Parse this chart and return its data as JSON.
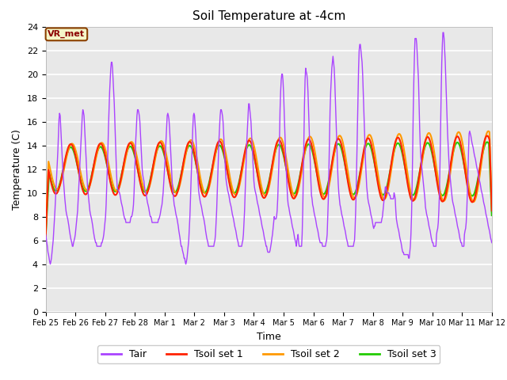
{
  "title": "Soil Temperature at -4cm",
  "xlabel": "Time",
  "ylabel": "Temperature (C)",
  "ylim": [
    0,
    24
  ],
  "bg_color": "#e8e8e8",
  "annotation": "VR_met",
  "annotation_color": "#8b0000",
  "annotation_bg": "#f5f5c8",
  "annotation_border": "#8b4000",
  "xtick_labels": [
    "Feb 25",
    "Feb 26",
    "Feb 27",
    "Feb 28",
    "Mar 1",
    "Mar 2",
    "Mar 3",
    "Mar 4",
    "Mar 5",
    "Mar 6",
    "Mar 7",
    "Mar 8",
    "Mar 9",
    "Mar 10",
    "Mar 11",
    "Mar 12"
  ],
  "line_colors": {
    "Tair": "#aa44ff",
    "Tsoil1": "#ff2200",
    "Tsoil2": "#ff9900",
    "Tsoil3": "#22cc00"
  },
  "line_widths": {
    "Tair": 1.0,
    "Tsoil1": 1.5,
    "Tsoil2": 1.5,
    "Tsoil3": 1.5
  },
  "legend_labels": [
    "Tair",
    "Tsoil set 1",
    "Tsoil set 2",
    "Tsoil set 3"
  ],
  "n_days": 16,
  "pts_per_day": 48,
  "Tair_raw": [
    6.5,
    6.2,
    5.8,
    5.5,
    5.0,
    4.8,
    4.5,
    4.2,
    4.0,
    4.2,
    4.5,
    5.0,
    5.5,
    6.0,
    6.8,
    7.5,
    8.5,
    9.5,
    10.5,
    11.5,
    12.5,
    13.5,
    14.8,
    16.2,
    16.7,
    16.5,
    15.5,
    14.5,
    13.5,
    12.5,
    11.5,
    10.8,
    10.0,
    9.5,
    9.0,
    8.5,
    8.2,
    8.0,
    7.8,
    7.5,
    7.2,
    6.8,
    6.5,
    6.2,
    6.0,
    5.8,
    5.5,
    5.5,
    5.8,
    6.0,
    6.2,
    6.5,
    7.0,
    7.5,
    8.0,
    8.5,
    9.5,
    10.5,
    11.5,
    12.5,
    13.5,
    14.5,
    15.5,
    16.5,
    17.0,
    16.8,
    16.5,
    15.5,
    14.5,
    13.5,
    12.5,
    11.5,
    10.5,
    10.0,
    9.5,
    9.0,
    8.5,
    8.2,
    8.0,
    7.8,
    7.5,
    7.2,
    6.8,
    6.5,
    6.2,
    6.0,
    5.8,
    5.8,
    5.5,
    5.5,
    5.5,
    5.5,
    5.5,
    5.5,
    5.5,
    5.5,
    5.8,
    5.8,
    6.0,
    6.2,
    6.5,
    7.0,
    7.5,
    8.0,
    9.0,
    10.5,
    12.0,
    13.5,
    15.5,
    17.0,
    18.5,
    19.5,
    20.5,
    21.0,
    21.0,
    20.5,
    19.5,
    18.5,
    17.5,
    16.0,
    14.5,
    13.0,
    11.5,
    10.5,
    10.3,
    10.2,
    10.1,
    10.0,
    9.8,
    9.5,
    9.2,
    9.0,
    8.8,
    8.5,
    8.2,
    8.0,
    7.8,
    7.8,
    7.5,
    7.5,
    7.5,
    7.5,
    7.5,
    7.5,
    7.5,
    7.5,
    7.8,
    8.0,
    8.0,
    8.2,
    8.5,
    9.0,
    10.0,
    11.5,
    13.0,
    14.5,
    15.5,
    16.5,
    17.0,
    17.0,
    16.8,
    16.5,
    16.0,
    15.0,
    14.0,
    13.0,
    12.0,
    11.5,
    11.2,
    11.0,
    10.5,
    10.2,
    10.0,
    9.8,
    9.5,
    9.2,
    9.0,
    8.8,
    8.5,
    8.2,
    8.0,
    8.0,
    7.8,
    7.5,
    7.5,
    7.5,
    7.5,
    7.5,
    7.5,
    7.5,
    7.5,
    7.5,
    7.5,
    7.5,
    7.8,
    7.8,
    8.0,
    8.2,
    8.5,
    8.8,
    9.0,
    9.5,
    10.0,
    10.8,
    11.5,
    12.5,
    13.5,
    14.5,
    15.5,
    16.5,
    16.7,
    16.5,
    16.2,
    15.5,
    14.5,
    13.5,
    12.5,
    11.5,
    10.5,
    10.0,
    9.5,
    9.0,
    8.8,
    8.5,
    8.2,
    8.0,
    7.8,
    7.5,
    7.2,
    6.8,
    6.5,
    6.2,
    5.8,
    5.5,
    5.5,
    5.2,
    5.0,
    4.8,
    4.5,
    4.5,
    4.2,
    4.0,
    4.2,
    4.5,
    5.0,
    5.5,
    6.0,
    7.0,
    8.0,
    9.5,
    11.0,
    12.5,
    14.0,
    15.5,
    16.5,
    16.7,
    16.5,
    15.8,
    15.0,
    14.0,
    13.0,
    12.0,
    11.0,
    10.2,
    9.8,
    9.5,
    9.2,
    9.0,
    8.8,
    8.5,
    8.2,
    8.0,
    7.8,
    7.5,
    7.2,
    6.8,
    6.5,
    6.2,
    6.0,
    5.8,
    5.5,
    5.5,
    5.5,
    5.5,
    5.5,
    5.5,
    5.5,
    5.5,
    5.5,
    5.5,
    5.8,
    6.0,
    6.5,
    7.5,
    8.5,
    10.0,
    11.5,
    13.0,
    14.5,
    15.5,
    16.5,
    17.0,
    17.0,
    16.8,
    16.5,
    16.0,
    15.0,
    14.0,
    13.0,
    12.0,
    11.2,
    10.8,
    10.5,
    10.2,
    10.0,
    9.8,
    9.5,
    9.2,
    9.0,
    8.8,
    8.5,
    8.2,
    8.0,
    7.8,
    7.5,
    7.2,
    7.0,
    6.8,
    6.5,
    6.2,
    6.0,
    5.8,
    5.5,
    5.5,
    5.5,
    5.5,
    5.5,
    5.5,
    5.8,
    6.0,
    6.5,
    7.5,
    8.5,
    10.0,
    11.5,
    13.0,
    14.5,
    15.5,
    16.5,
    17.5,
    17.5,
    17.0,
    16.5,
    16.0,
    15.0,
    14.0,
    13.0,
    12.0,
    11.0,
    10.5,
    10.2,
    10.0,
    9.8,
    9.5,
    9.2,
    9.0,
    8.8,
    8.5,
    8.2,
    8.0,
    7.8,
    7.5,
    7.2,
    7.0,
    6.8,
    6.5,
    6.2,
    6.0,
    5.8,
    5.5,
    5.5,
    5.2,
    5.0,
    5.0,
    5.0,
    5.0,
    5.2,
    5.5,
    5.8,
    6.2,
    6.5,
    7.0,
    7.5,
    8.0,
    7.8,
    7.8,
    7.8,
    8.0,
    8.5,
    9.5,
    11.0,
    12.5,
    14.5,
    17.0,
    18.5,
    19.5,
    20.0,
    20.0,
    19.5,
    18.5,
    17.0,
    15.5,
    14.0,
    12.5,
    11.5,
    10.5,
    9.5,
    9.0,
    8.8,
    8.5,
    8.2,
    8.0,
    7.8,
    7.5,
    7.2,
    7.0,
    6.8,
    6.5,
    6.2,
    6.0,
    5.8,
    5.5,
    6.0,
    6.2,
    6.5,
    5.8,
    5.5,
    5.5,
    5.5,
    5.5,
    5.5,
    6.5,
    8.5,
    11.5,
    14.5,
    17.5,
    19.5,
    20.5,
    20.2,
    20.0,
    19.5,
    18.5,
    17.0,
    15.5,
    14.0,
    12.5,
    11.0,
    9.8,
    9.5,
    9.0,
    8.8,
    8.5,
    8.2,
    8.0,
    7.8,
    7.5,
    7.2,
    7.0,
    6.8,
    6.5,
    6.2,
    6.0,
    5.8,
    5.8,
    5.8,
    5.8,
    5.5,
    5.5,
    5.5,
    5.5,
    5.5,
    5.5,
    5.8,
    6.0,
    6.5,
    8.0,
    9.5,
    12.0,
    14.5,
    17.0,
    18.5,
    19.5,
    20.5,
    21.0,
    21.5,
    21.0,
    20.5,
    19.5,
    18.0,
    16.5,
    15.0,
    13.5,
    12.0,
    10.8,
    10.0,
    9.5,
    9.0,
    8.8,
    8.5,
    8.2,
    8.0,
    7.8,
    7.5,
    7.2,
    7.0,
    6.8,
    6.5,
    6.2,
    6.0,
    5.8,
    5.5,
    5.5,
    5.5,
    5.5,
    5.5,
    5.5,
    5.5,
    5.5,
    5.5,
    5.5,
    5.8,
    6.0,
    7.0,
    8.5,
    10.5,
    13.0,
    15.5,
    18.0,
    20.5,
    22.0,
    22.5,
    22.5,
    22.0,
    21.5,
    21.0,
    20.0,
    18.5,
    17.0,
    15.5,
    14.0,
    12.5,
    11.5,
    10.5,
    10.0,
    9.5,
    9.2,
    9.0,
    8.8,
    8.5,
    8.2,
    8.0,
    7.8,
    7.5,
    7.2,
    7.0,
    7.2,
    7.2,
    7.5,
    7.5,
    7.5,
    7.5,
    7.5,
    7.5,
    7.5,
    7.5,
    7.5,
    7.5,
    7.5,
    7.8,
    8.0,
    8.5,
    9.0,
    9.5,
    10.0,
    10.5,
    10.5,
    10.2,
    10.0,
    10.0,
    10.0,
    10.0,
    9.8,
    9.8,
    9.5,
    9.5,
    9.5,
    9.5,
    9.5,
    9.5,
    10.0,
    9.8,
    9.5,
    8.5,
    7.8,
    7.5,
    7.2,
    7.0,
    6.8,
    6.5,
    6.2,
    6.0,
    5.8,
    5.5,
    5.2,
    5.0,
    5.0,
    4.8,
    4.8,
    4.8,
    4.8,
    4.8,
    4.8,
    4.8,
    4.8,
    4.5,
    4.5,
    5.0,
    5.5,
    6.5,
    8.0,
    10.5,
    13.5,
    17.0,
    19.5,
    21.5,
    23.0,
    23.0,
    23.0,
    22.5,
    21.5,
    20.5,
    19.5,
    17.5,
    15.5,
    14.0,
    13.0,
    12.5,
    12.0,
    11.5,
    11.0,
    10.5,
    10.0,
    9.5,
    8.8,
    8.5,
    8.2,
    8.0,
    7.8,
    7.5,
    7.2,
    7.0,
    6.8,
    6.5,
    6.2,
    6.0,
    5.8,
    5.8,
    5.5,
    5.5,
    5.5,
    5.5,
    5.5,
    6.5,
    6.8,
    7.0,
    7.5,
    8.5,
    10.0,
    12.5,
    15.5,
    18.5,
    21.0,
    22.5,
    23.5,
    23.5,
    23.0,
    22.0,
    21.0,
    19.5,
    18.0,
    16.5,
    15.0,
    14.0,
    13.0,
    12.0,
    11.5,
    11.0,
    10.5,
    10.0,
    9.5,
    9.2,
    9.0,
    8.8,
    8.5,
    8.2,
    8.0,
    7.8,
    7.5,
    7.2,
    7.0,
    6.8,
    6.5,
    6.2,
    6.0,
    5.8,
    5.8,
    5.5,
    5.5,
    5.5,
    5.5,
    6.5,
    6.8,
    7.0,
    7.5,
    8.5,
    10.0,
    11.5,
    13.5,
    15.0,
    15.2,
    15.0,
    14.8,
    14.5,
    14.2,
    14.0,
    13.8,
    13.5,
    13.2,
    13.0,
    12.8,
    12.5,
    12.2,
    12.0,
    11.8,
    11.5,
    11.2,
    11.0,
    10.8,
    10.5,
    10.2,
    10.0,
    9.8,
    9.5,
    9.2,
    9.0,
    8.8,
    8.5,
    8.2,
    8.0,
    7.8,
    7.5,
    7.2,
    7.0,
    6.8,
    6.5,
    6.2,
    6.0,
    5.8
  ]
}
